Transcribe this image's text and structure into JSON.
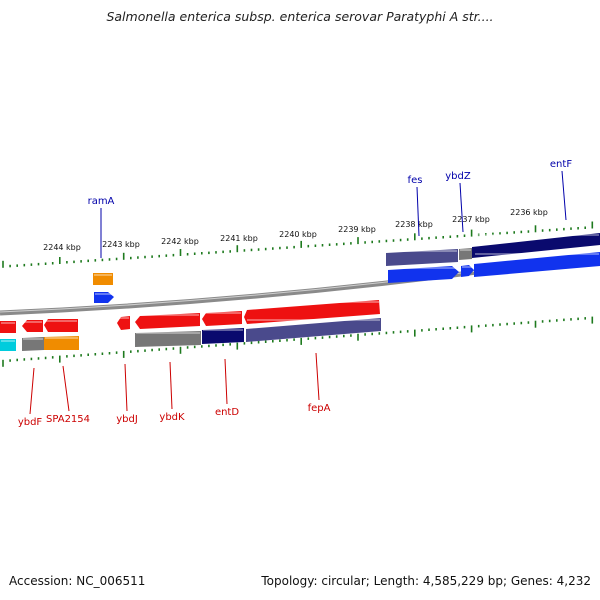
{
  "title": "Salmonella enterica subsp. enterica serovar Paratyphi A str....",
  "footer": {
    "accession": "Accession: NC_006511",
    "topology": "Topology: circular; Length: 4,585,229 bp; Genes: 4,232"
  },
  "colors": {
    "backbone": "#888888",
    "tick": "#1e7a1e",
    "upper_label": "#0000aa",
    "lower_label": "#cc0000",
    "gene_red": "#ee1111",
    "gene_blue": "#1133ee",
    "gene_navy": "#0a0a6e",
    "gene_slate": "#4a4a8c",
    "gene_gray": "#777777",
    "gene_orange": "#f08c00",
    "gene_cyan": "#00ccdd"
  },
  "scale": {
    "unit": "kbp",
    "labels": [
      "2244 kbp",
      "2243 kbp",
      "2242 kbp",
      "2241 kbp",
      "2240 kbp",
      "2239 kbp",
      "2238 kbp",
      "2237 kbp",
      "2236 kbp"
    ]
  },
  "upper_genes": [
    {
      "name": "ramA"
    },
    {
      "name": "fes"
    },
    {
      "name": "ybdZ"
    },
    {
      "name": "entF"
    }
  ],
  "lower_genes": [
    {
      "name": "ybdF"
    },
    {
      "name": "SPA2154"
    },
    {
      "name": "ybdJ"
    },
    {
      "name": "ybdK"
    },
    {
      "name": "entD"
    },
    {
      "name": "fepA"
    }
  ]
}
